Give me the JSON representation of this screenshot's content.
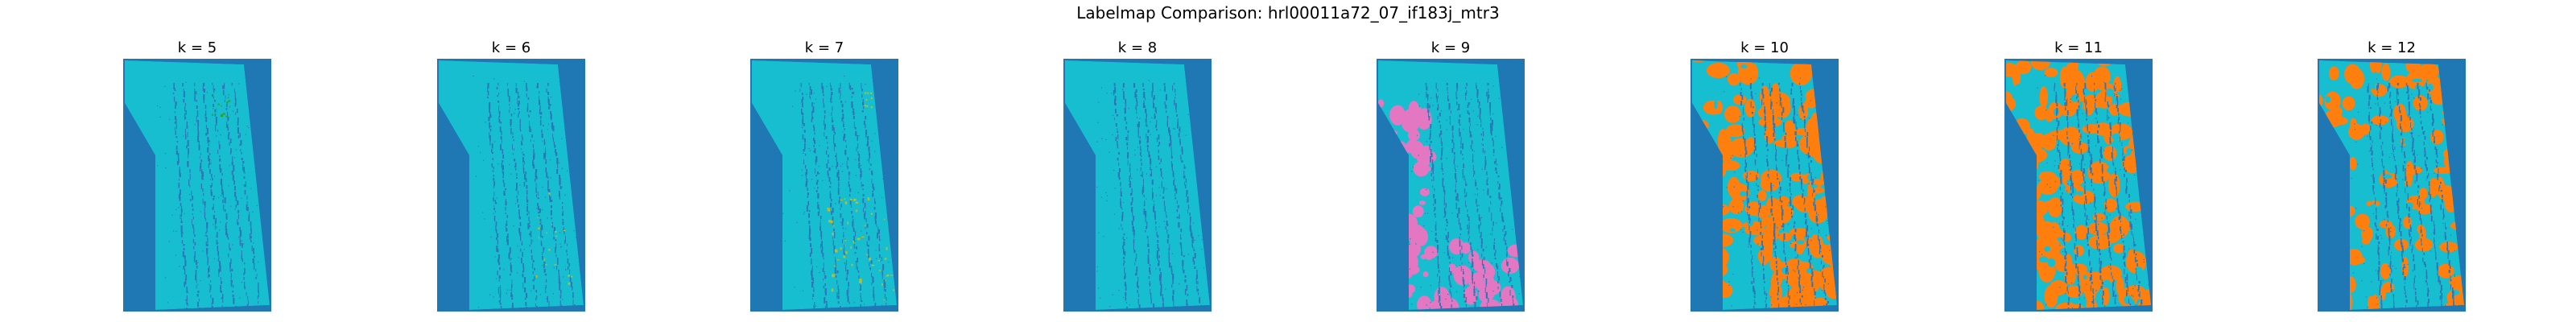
{
  "figure": {
    "title": "Labelmap Comparison: hrl00011a72_07_if183j_mtr3"
  },
  "colors": {
    "background_label": "#1f77b4",
    "main_label": "#17becf",
    "stripe_label": "#2a78b6",
    "noise_green": "#2ca02c",
    "noise_olive": "#bcbd22",
    "pink_label": "#e377c2",
    "orange_label": "#ff7f0e"
  },
  "panels": [
    {
      "title": "k = 5",
      "overlay": "green"
    },
    {
      "title": "k = 6",
      "overlay": "olive-light"
    },
    {
      "title": "k = 7",
      "overlay": "olive"
    },
    {
      "title": "k = 8",
      "overlay": "none"
    },
    {
      "title": "k = 9",
      "overlay": "pink"
    },
    {
      "title": "k = 10",
      "overlay": "orange-heavy"
    },
    {
      "title": "k = 11",
      "overlay": "orange-heavy"
    },
    {
      "title": "k = 12",
      "overlay": "orange-medium"
    }
  ]
}
